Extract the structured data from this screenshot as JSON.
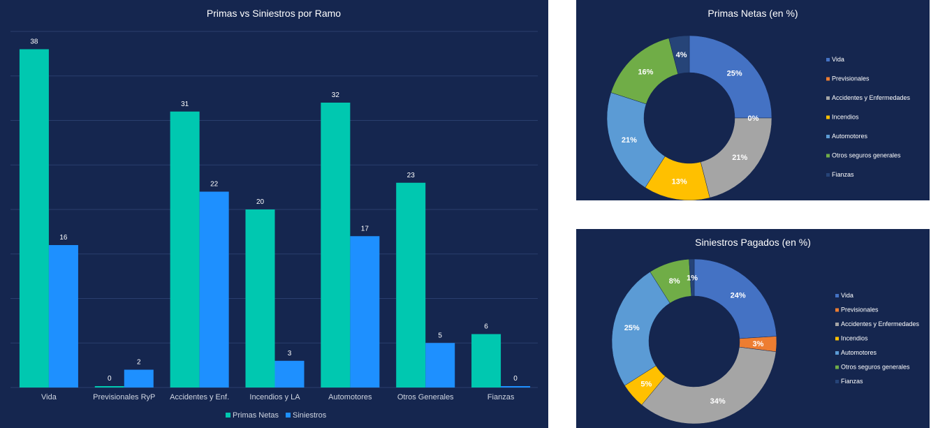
{
  "chart_data": [
    {
      "type": "bar",
      "title": "Primas vs Siniestros por Ramo",
      "categories": [
        "Vida",
        "Previsionales RyP",
        "Accidentes y Enf.",
        "Incendios y LA",
        "Automotores",
        "Otros Generales",
        "Fianzas"
      ],
      "series": [
        {
          "name": "Primas Netas",
          "values": [
            38,
            0,
            31,
            20,
            32,
            23,
            6
          ],
          "color": "#00c8b0"
        },
        {
          "name": "Siniestros",
          "values": [
            16,
            2,
            22,
            3,
            17,
            5,
            0
          ],
          "color": "#1e90ff"
        }
      ],
      "ylim": [
        0,
        40
      ],
      "grid": true,
      "legend": "bottom"
    },
    {
      "type": "pie",
      "variant": "donut",
      "title": "Primas Netas (en %)",
      "labels": [
        "Vida",
        "Previsionales",
        "Accidentes y Enfermedades",
        "Incendios",
        "Automotores",
        "Otros seguros generales",
        "Fianzas"
      ],
      "values": [
        25,
        0,
        21,
        13,
        21,
        16,
        4
      ],
      "value_labels": [
        "25%",
        "0%",
        "21%",
        "13%",
        "21%",
        "16%",
        "4%"
      ],
      "colors": [
        "#4472c4",
        "#ed7d31",
        "#a5a5a5",
        "#ffc000",
        "#5b9bd5",
        "#70ad47",
        "#264478"
      ],
      "legend": "right"
    },
    {
      "type": "pie",
      "variant": "donut",
      "title": "Siniestros Pagados (en %)",
      "labels": [
        "Vida",
        "Previsionales",
        "Accidentes y Enfermedades",
        "Incendios",
        "Automotores",
        "Otros seguros generales",
        "Fianzas"
      ],
      "values": [
        24,
        3,
        34,
        5,
        25,
        8,
        1
      ],
      "value_labels": [
        "24%",
        "3%",
        "34%",
        "5%",
        "25%",
        "8%",
        "1%"
      ],
      "colors": [
        "#4472c4",
        "#ed7d31",
        "#a5a5a5",
        "#ffc000",
        "#5b9bd5",
        "#70ad47",
        "#264478"
      ],
      "legend": "right"
    }
  ]
}
